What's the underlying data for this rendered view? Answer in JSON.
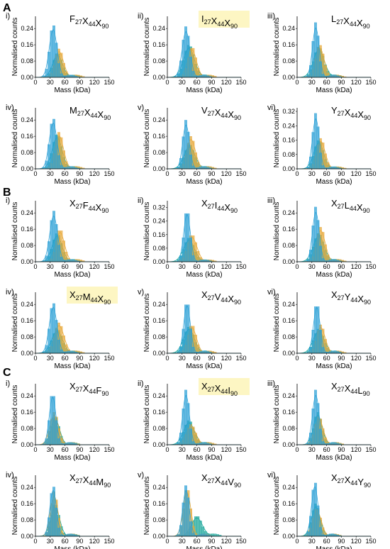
{
  "figure": {
    "panel_labels": [
      "A",
      "B",
      "C"
    ],
    "xlabel": "Mass (kDa)",
    "ylabel": "Normalised counts",
    "colors": {
      "blue": "#2a9fd6",
      "orange": "#e8a838",
      "teal": "#1aa69a",
      "highlight": "#fdf6c3"
    }
  },
  "chart_data": [
    {
      "group": "A",
      "roman": "i)",
      "title": [
        [
          "F",
          "27"
        ],
        [
          "X",
          "44"
        ],
        [
          "X",
          "90"
        ]
      ],
      "highlight": false,
      "type": "histogram",
      "xlim": [
        0,
        150
      ],
      "xticks": [
        0,
        30,
        60,
        90,
        120,
        150
      ],
      "ylim": [
        0,
        0.3
      ],
      "yticks": [
        "0.00",
        "0.08",
        "0.16",
        "0.24"
      ],
      "grid": false,
      "series": [
        {
          "color": "blue",
          "peak_mass": 36,
          "peak_count": 0.26,
          "width": 7
        },
        {
          "color": "orange",
          "peak_mass": 48,
          "peak_count": 0.14,
          "width": 8
        },
        {
          "color": "teal",
          "peak_mass": 45,
          "peak_count": 0.12,
          "width": 9
        }
      ]
    },
    {
      "group": "A",
      "roman": "ii)",
      "title": [
        [
          "I",
          "27"
        ],
        [
          "X",
          "44"
        ],
        [
          "X",
          "90"
        ]
      ],
      "highlight": true,
      "type": "histogram",
      "xlim": [
        0,
        150
      ],
      "xticks": [
        0,
        30,
        60,
        90,
        120,
        150
      ],
      "ylim": [
        0,
        0.3
      ],
      "yticks": [
        "0.00",
        "0.08",
        "0.16",
        "0.24"
      ],
      "grid": false,
      "series": [
        {
          "color": "blue",
          "peak_mass": 38,
          "peak_count": 0.25,
          "width": 7
        },
        {
          "color": "orange",
          "peak_mass": 50,
          "peak_count": 0.15,
          "width": 8
        },
        {
          "color": "teal",
          "peak_mass": 44,
          "peak_count": 0.16,
          "width": 10
        }
      ]
    },
    {
      "group": "A",
      "roman": "iii)",
      "title": [
        [
          "L",
          "27"
        ],
        [
          "X",
          "44"
        ],
        [
          "X",
          "90"
        ]
      ],
      "highlight": false,
      "type": "histogram",
      "xlim": [
        0,
        150
      ],
      "xticks": [
        0,
        30,
        60,
        90,
        120,
        150
      ],
      "ylim": [
        0,
        0.3
      ],
      "yticks": [
        "0.00",
        "0.08",
        "0.16",
        "0.24"
      ],
      "grid": false,
      "series": [
        {
          "color": "blue",
          "peak_mass": 38,
          "peak_count": 0.27,
          "width": 6
        },
        {
          "color": "orange",
          "peak_mass": 46,
          "peak_count": 0.16,
          "width": 8
        },
        {
          "color": "teal",
          "peak_mass": 44,
          "peak_count": 0.15,
          "width": 10
        }
      ]
    },
    {
      "group": "A",
      "roman": "iv)",
      "title": [
        [
          "M",
          "27"
        ],
        [
          "X",
          "44"
        ],
        [
          "X",
          "90"
        ]
      ],
      "highlight": false,
      "type": "histogram",
      "xlim": [
        0,
        150
      ],
      "xticks": [
        0,
        30,
        60,
        90,
        120,
        150
      ],
      "ylim": [
        0,
        0.3
      ],
      "yticks": [
        "0.00",
        "0.08",
        "0.16",
        "0.24"
      ],
      "grid": false,
      "series": [
        {
          "color": "blue",
          "peak_mass": 36,
          "peak_count": 0.25,
          "width": 7
        },
        {
          "color": "orange",
          "peak_mass": 48,
          "peak_count": 0.18,
          "width": 8
        },
        {
          "color": "teal",
          "peak_mass": 44,
          "peak_count": 0.17,
          "width": 9
        }
      ]
    },
    {
      "group": "A",
      "roman": "v)",
      "title": [
        [
          "V",
          "27"
        ],
        [
          "X",
          "44"
        ],
        [
          "X",
          "90"
        ]
      ],
      "highlight": false,
      "type": "histogram",
      "xlim": [
        0,
        150
      ],
      "xticks": [
        0,
        30,
        60,
        90,
        120,
        150
      ],
      "ylim": [
        0,
        0.3
      ],
      "yticks": [
        "0.00",
        "0.08",
        "0.16",
        "0.24"
      ],
      "grid": false,
      "series": [
        {
          "color": "blue",
          "peak_mass": 38,
          "peak_count": 0.24,
          "width": 6
        },
        {
          "color": "orange",
          "peak_mass": 48,
          "peak_count": 0.16,
          "width": 8
        },
        {
          "color": "teal",
          "peak_mass": 45,
          "peak_count": 0.12,
          "width": 10
        }
      ]
    },
    {
      "group": "A",
      "roman": "vi)",
      "title": [
        [
          "Y",
          "27"
        ],
        [
          "X",
          "44"
        ],
        [
          "X",
          "90"
        ]
      ],
      "highlight": false,
      "type": "histogram",
      "xlim": [
        0,
        150
      ],
      "xticks": [
        0,
        30,
        60,
        90,
        120,
        150
      ],
      "ylim": [
        0,
        0.34
      ],
      "yticks": [
        "0.00",
        "0.08",
        "0.16",
        "0.24",
        "0.32"
      ],
      "grid": false,
      "series": [
        {
          "color": "blue",
          "peak_mass": 38,
          "peak_count": 0.31,
          "width": 6
        },
        {
          "color": "orange",
          "peak_mass": 48,
          "peak_count": 0.17,
          "width": 8
        },
        {
          "color": "teal",
          "peak_mass": 44,
          "peak_count": 0.16,
          "width": 9
        }
      ]
    },
    {
      "group": "B",
      "roman": "i)",
      "title": [
        [
          "X",
          "27"
        ],
        [
          "F",
          "44"
        ],
        [
          "X",
          "90"
        ]
      ],
      "highlight": false,
      "type": "histogram",
      "xlim": [
        0,
        150
      ],
      "xticks": [
        0,
        30,
        60,
        90,
        120,
        150
      ],
      "ylim": [
        0,
        0.3
      ],
      "yticks": [
        "0.00",
        "0.08",
        "0.16",
        "0.24"
      ],
      "grid": false,
      "series": [
        {
          "color": "blue",
          "peak_mass": 37,
          "peak_count": 0.25,
          "width": 7
        },
        {
          "color": "orange",
          "peak_mass": 50,
          "peak_count": 0.16,
          "width": 8
        },
        {
          "color": "teal",
          "peak_mass": 44,
          "peak_count": 0.14,
          "width": 9
        }
      ]
    },
    {
      "group": "B",
      "roman": "ii)",
      "title": [
        [
          "X",
          "27"
        ],
        [
          "I",
          "44"
        ],
        [
          "X",
          "90"
        ]
      ],
      "highlight": false,
      "type": "histogram",
      "xlim": [
        0,
        150
      ],
      "xticks": [
        0,
        30,
        60,
        90,
        120,
        150
      ],
      "ylim": [
        0,
        0.36
      ],
      "yticks": [
        "0.00",
        "0.08",
        "0.16",
        "0.24",
        "0.32"
      ],
      "grid": false,
      "series": [
        {
          "color": "blue",
          "peak_mass": 40,
          "peak_count": 0.31,
          "width": 6
        },
        {
          "color": "orange",
          "peak_mass": 50,
          "peak_count": 0.16,
          "width": 9
        },
        {
          "color": "teal",
          "peak_mass": 44,
          "peak_count": 0.14,
          "width": 10
        }
      ]
    },
    {
      "group": "B",
      "roman": "iii)",
      "title": [
        [
          "X",
          "27"
        ],
        [
          "L",
          "44"
        ],
        [
          "X",
          "90"
        ]
      ],
      "highlight": false,
      "type": "histogram",
      "xlim": [
        0,
        150
      ],
      "xticks": [
        0,
        30,
        60,
        90,
        120,
        150
      ],
      "ylim": [
        0,
        0.3
      ],
      "yticks": [
        "0.00",
        "0.08",
        "0.16",
        "0.24"
      ],
      "grid": false,
      "series": [
        {
          "color": "blue",
          "peak_mass": 38,
          "peak_count": 0.27,
          "width": 6
        },
        {
          "color": "orange",
          "peak_mass": 48,
          "peak_count": 0.17,
          "width": 8
        },
        {
          "color": "teal",
          "peak_mass": 44,
          "peak_count": 0.14,
          "width": 10
        }
      ]
    },
    {
      "group": "B",
      "roman": "iv)",
      "title": [
        [
          "X",
          "27"
        ],
        [
          "M",
          "44"
        ],
        [
          "X",
          "90"
        ]
      ],
      "highlight": true,
      "type": "histogram",
      "xlim": [
        0,
        150
      ],
      "xticks": [
        0,
        30,
        60,
        90,
        120,
        150
      ],
      "ylim": [
        0,
        0.3
      ],
      "yticks": [
        "0.00",
        "0.08",
        "0.16",
        "0.24"
      ],
      "grid": false,
      "series": [
        {
          "color": "blue",
          "peak_mass": 36,
          "peak_count": 0.25,
          "width": 7
        },
        {
          "color": "orange",
          "peak_mass": 48,
          "peak_count": 0.15,
          "width": 9
        },
        {
          "color": "teal",
          "peak_mass": 44,
          "peak_count": 0.12,
          "width": 10
        }
      ]
    },
    {
      "group": "B",
      "roman": "v)",
      "title": [
        [
          "X",
          "27"
        ],
        [
          "V",
          "44"
        ],
        [
          "X",
          "90"
        ]
      ],
      "highlight": false,
      "type": "histogram",
      "xlim": [
        0,
        150
      ],
      "xticks": [
        0,
        30,
        60,
        90,
        120,
        150
      ],
      "ylim": [
        0,
        0.3
      ],
      "yticks": [
        "0.00",
        "0.08",
        "0.16",
        "0.24"
      ],
      "grid": false,
      "series": [
        {
          "color": "blue",
          "peak_mass": 40,
          "peak_count": 0.26,
          "width": 6
        },
        {
          "color": "orange",
          "peak_mass": 50,
          "peak_count": 0.14,
          "width": 8
        },
        {
          "color": "teal",
          "peak_mass": 44,
          "peak_count": 0.13,
          "width": 10
        }
      ]
    },
    {
      "group": "B",
      "roman": "vi)",
      "title": [
        [
          "X",
          "27"
        ],
        [
          "Y",
          "44"
        ],
        [
          "X",
          "90"
        ]
      ],
      "highlight": false,
      "type": "histogram",
      "xlim": [
        0,
        150
      ],
      "xticks": [
        0,
        30,
        60,
        90,
        120,
        150
      ],
      "ylim": [
        0,
        0.3
      ],
      "yticks": [
        "0.00",
        "0.08",
        "0.16",
        "0.24"
      ],
      "grid": false,
      "series": [
        {
          "color": "blue",
          "peak_mass": 40,
          "peak_count": 0.25,
          "width": 6
        },
        {
          "color": "orange",
          "peak_mass": 48,
          "peak_count": 0.14,
          "width": 8
        },
        {
          "color": "teal",
          "peak_mass": 44,
          "peak_count": 0.12,
          "width": 10
        }
      ]
    },
    {
      "group": "C",
      "roman": "i)",
      "title": [
        [
          "X",
          "27"
        ],
        [
          "X",
          "44"
        ],
        [
          "F",
          "90"
        ]
      ],
      "highlight": false,
      "type": "histogram",
      "xlim": [
        0,
        150
      ],
      "xticks": [
        0,
        30,
        60,
        90,
        120,
        150
      ],
      "ylim": [
        0,
        0.3
      ],
      "yticks": [
        "0.00",
        "0.08",
        "0.16",
        "0.24"
      ],
      "grid": false,
      "series": [
        {
          "color": "blue",
          "peak_mass": 35,
          "peak_count": 0.26,
          "width": 6
        },
        {
          "color": "orange",
          "peak_mass": 38,
          "peak_count": 0.16,
          "width": 8
        },
        {
          "color": "teal",
          "peak_mass": 40,
          "peak_count": 0.14,
          "width": 8
        }
      ]
    },
    {
      "group": "C",
      "roman": "ii)",
      "title": [
        [
          "X",
          "27"
        ],
        [
          "X",
          "44"
        ],
        [
          "I",
          "90"
        ]
      ],
      "highlight": true,
      "type": "histogram",
      "xlim": [
        0,
        150
      ],
      "xticks": [
        0,
        30,
        60,
        90,
        120,
        150
      ],
      "ylim": [
        0,
        0.3
      ],
      "yticks": [
        "0.00",
        "0.08",
        "0.16",
        "0.24"
      ],
      "grid": false,
      "series": [
        {
          "color": "blue",
          "peak_mass": 38,
          "peak_count": 0.27,
          "width": 6
        },
        {
          "color": "orange",
          "peak_mass": 48,
          "peak_count": 0.1,
          "width": 9
        },
        {
          "color": "teal",
          "peak_mass": 44,
          "peak_count": 0.12,
          "width": 10
        }
      ]
    },
    {
      "group": "C",
      "roman": "iii)",
      "title": [
        [
          "X",
          "27"
        ],
        [
          "X",
          "44"
        ],
        [
          "L",
          "90"
        ]
      ],
      "highlight": false,
      "type": "histogram",
      "xlim": [
        0,
        150
      ],
      "xticks": [
        0,
        30,
        60,
        90,
        120,
        150
      ],
      "ylim": [
        0,
        0.3
      ],
      "yticks": [
        "0.00",
        "0.08",
        "0.16",
        "0.24"
      ],
      "grid": false,
      "series": [
        {
          "color": "blue",
          "peak_mass": 38,
          "peak_count": 0.27,
          "width": 6
        },
        {
          "color": "orange",
          "peak_mass": 44,
          "peak_count": 0.14,
          "width": 8
        },
        {
          "color": "teal",
          "peak_mass": 42,
          "peak_count": 0.16,
          "width": 8
        }
      ]
    },
    {
      "group": "C",
      "roman": "iv)",
      "title": [
        [
          "X",
          "27"
        ],
        [
          "X",
          "44"
        ],
        [
          "M",
          "90"
        ]
      ],
      "highlight": false,
      "type": "histogram",
      "xlim": [
        0,
        150
      ],
      "xticks": [
        0,
        30,
        60,
        90,
        120,
        150
      ],
      "ylim": [
        0,
        0.3
      ],
      "yticks": [
        "0.00",
        "0.08",
        "0.16",
        "0.24"
      ],
      "grid": false,
      "series": [
        {
          "color": "blue",
          "peak_mass": 36,
          "peak_count": 0.25,
          "width": 6
        },
        {
          "color": "orange",
          "peak_mass": 38,
          "peak_count": 0.22,
          "width": 7
        },
        {
          "color": "teal",
          "peak_mass": 40,
          "peak_count": 0.16,
          "width": 8
        }
      ]
    },
    {
      "group": "C",
      "roman": "v)",
      "title": [
        [
          "X",
          "27"
        ],
        [
          "X",
          "44"
        ],
        [
          "V",
          "90"
        ]
      ],
      "highlight": false,
      "type": "histogram",
      "xlim": [
        0,
        150
      ],
      "xticks": [
        0,
        30,
        60,
        90,
        120,
        150
      ],
      "ylim": [
        0,
        0.3
      ],
      "yticks": [
        "0.00",
        "0.08",
        "0.16",
        "0.24"
      ],
      "grid": false,
      "series": [
        {
          "color": "blue",
          "peak_mass": 38,
          "peak_count": 0.25,
          "width": 6
        },
        {
          "color": "orange",
          "peak_mass": 40,
          "peak_count": 0.24,
          "width": 7
        },
        {
          "color": "teal",
          "peak_mass": 60,
          "peak_count": 0.1,
          "width": 10
        }
      ]
    },
    {
      "group": "C",
      "roman": "vi)",
      "title": [
        [
          "X",
          "27"
        ],
        [
          "X",
          "44"
        ],
        [
          "Y",
          "90"
        ]
      ],
      "highlight": false,
      "type": "histogram",
      "xlim": [
        0,
        150
      ],
      "xticks": [
        0,
        30,
        60,
        90,
        120,
        150
      ],
      "ylim": [
        0,
        0.3
      ],
      "yticks": [
        "0.00",
        "0.08",
        "0.16",
        "0.24"
      ],
      "grid": false,
      "series": [
        {
          "color": "blue",
          "peak_mass": 36,
          "peak_count": 0.27,
          "width": 6
        },
        {
          "color": "orange",
          "peak_mass": 40,
          "peak_count": 0.14,
          "width": 8
        },
        {
          "color": "teal",
          "peak_mass": 38,
          "peak_count": 0.16,
          "width": 8
        }
      ]
    }
  ]
}
